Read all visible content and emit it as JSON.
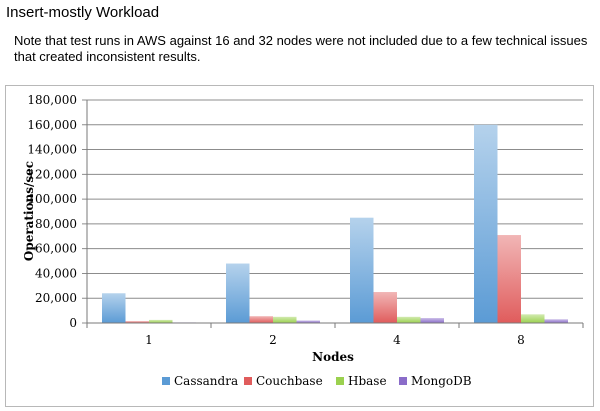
{
  "page": {
    "title": "Insert-mostly Workload",
    "note": "Note that test runs in AWS against 16 and 32 nodes were not included due to a few technical issues that created inconsistent results."
  },
  "chart_data": {
    "type": "bar",
    "title": "",
    "xlabel": "Nodes",
    "ylabel": "Operations/sec",
    "ylim": [
      0,
      180000
    ],
    "yticks": [
      0,
      20000,
      40000,
      60000,
      80000,
      100000,
      120000,
      140000,
      160000,
      180000
    ],
    "ytick_labels": [
      "0",
      "20,000",
      "40,000",
      "60,000",
      "80,000",
      "100,000",
      "120,000",
      "140,000",
      "160,000",
      "180,000"
    ],
    "grid": "horizontal",
    "legend_position": "bottom",
    "categories": [
      "1",
      "2",
      "4",
      "8"
    ],
    "series": [
      {
        "name": "Cassandra",
        "color": "#5b9bd5",
        "values": [
          24000,
          48000,
          85000,
          160000
        ]
      },
      {
        "name": "Couchbase",
        "color": "#e05c5c",
        "values": [
          1500,
          5500,
          25000,
          71000
        ]
      },
      {
        "name": "Hbase",
        "color": "#9bd14f",
        "values": [
          2500,
          5000,
          5000,
          7000
        ]
      },
      {
        "name": "MongoDB",
        "color": "#8a6cc9",
        "values": [
          500,
          2000,
          4000,
          3000
        ]
      }
    ]
  }
}
